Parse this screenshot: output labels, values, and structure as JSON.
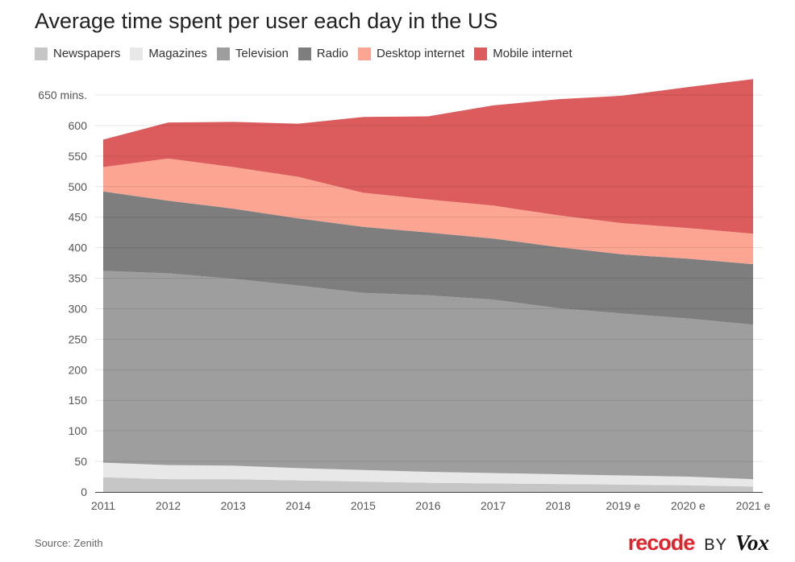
{
  "chart_data": {
    "type": "area",
    "stacked": true,
    "title": "Average time spent per user each day in the US",
    "categories": [
      "2011",
      "2012",
      "2013",
      "2014",
      "2015",
      "2016",
      "2017",
      "2018",
      "2019 e",
      "2020 e",
      "2021 e"
    ],
    "series": [
      {
        "name": "Newspapers",
        "color": "#c6c6c6",
        "values": [
          24,
          21,
          21,
          19,
          17,
          15,
          14,
          13,
          12,
          11,
          9
        ]
      },
      {
        "name": "Magazines",
        "color": "#e8e8e8",
        "values": [
          24,
          23,
          22,
          20,
          19,
          18,
          17,
          16,
          15,
          14,
          12
        ]
      },
      {
        "name": "Television",
        "color": "#9e9e9e",
        "values": [
          314,
          314,
          306,
          299,
          290,
          289,
          284,
          272,
          265,
          259,
          253
        ]
      },
      {
        "name": "Radio",
        "color": "#7e7e7e",
        "values": [
          130,
          119,
          115,
          110,
          108,
          103,
          100,
          100,
          97,
          98,
          99
        ]
      },
      {
        "name": "Desktop internet",
        "color": "#fca593",
        "values": [
          40,
          69,
          68,
          68,
          56,
          54,
          54,
          52,
          51,
          50,
          50
        ]
      },
      {
        "name": "Mobile internet",
        "color": "#dc5c5e",
        "values": [
          45,
          59,
          74,
          87,
          124,
          136,
          164,
          190,
          209,
          231,
          253
        ]
      }
    ],
    "y_ticks": [
      "0",
      "50",
      "100",
      "150",
      "200",
      "250",
      "300",
      "350",
      "400",
      "450",
      "500",
      "550",
      "600",
      "650 mins."
    ],
    "ylim": [
      0,
      650
    ],
    "grid": true,
    "legend_position": "top-left"
  },
  "source": "Source: Zenith",
  "brand": {
    "recode": "recode",
    "by": "BY",
    "vox": "Vox"
  }
}
